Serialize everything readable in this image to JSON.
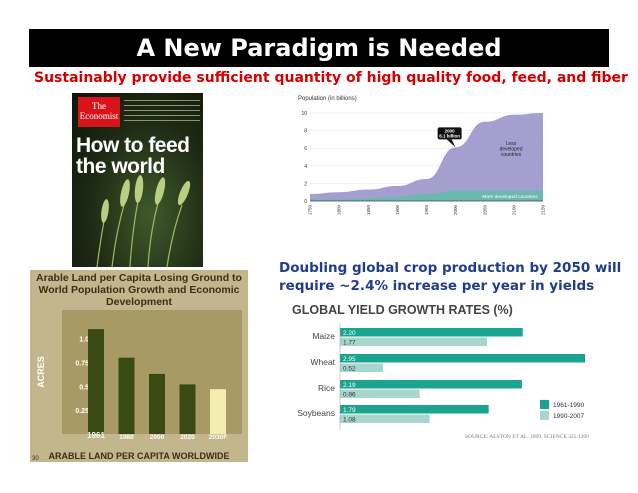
{
  "slide": {
    "title": "A New Paradigm is Needed",
    "subtitle": "Sustainably provide sufficient quantity of high quality food, feed, and fiber"
  },
  "cover": {
    "brand": "The Economist",
    "headline": "How to feed the world"
  },
  "population_chart": {
    "type": "area",
    "ylabel": "Population (in billions)",
    "y_ticks": [
      "10",
      "8",
      "6",
      "4",
      "2",
      "0"
    ],
    "x_ticks": [
      "1750",
      "1800",
      "1850",
      "1900",
      "1950",
      "2000",
      "2050",
      "2100",
      "2150"
    ],
    "annotation": "2000 6.1 billion",
    "series_less": "Less developed countries",
    "series_more": "More developed countries",
    "colors": {
      "less": "#a59fd0",
      "more": "#6bb8b0"
    }
  },
  "acres_chart": {
    "title": "Arable Land per Capita Losing Ground to World Population Growth and Economic Development",
    "ylabel": "ACRES",
    "footer": "ARABLE LAND PER CAPITA WORLDWIDE",
    "corner": "30",
    "colors": {
      "bar": "#3a4a14",
      "projected": "#f3edb0"
    }
  },
  "doubling_text": {
    "line1": "Doubling global crop production by 2050 will",
    "line2": "require ~2.4% increase per year in yields"
  },
  "yield_chart": {
    "title": "GLOBAL YIELD GROWTH RATES (%)",
    "legend": [
      "1961-1990",
      "1990-2007"
    ],
    "source": "SOURCE: ALSTON ET AL. 2009. SCIENCE 325:1209",
    "colors": {
      "early": "#1aa38e",
      "late": "#a7d6cd"
    }
  },
  "chart_data": [
    {
      "type": "area",
      "title": "",
      "ylabel": "Population (in billions)",
      "xlabel": "",
      "ylim": [
        0,
        10
      ],
      "x": [
        1750,
        1800,
        1850,
        1900,
        1950,
        2000,
        2050,
        2100,
        2150
      ],
      "series": [
        {
          "name": "More developed countries",
          "values": [
            0.2,
            0.2,
            0.3,
            0.5,
            0.8,
            1.2,
            1.2,
            1.2,
            1.2
          ]
        },
        {
          "name": "Less developed countries",
          "values": [
            0.6,
            0.8,
            1.0,
            1.2,
            1.7,
            4.9,
            7.8,
            8.6,
            8.8
          ]
        }
      ]
    },
    {
      "type": "bar",
      "title": "Arable Land per Capita Losing Ground to World Population Growth and Economic Development",
      "ylabel": "ACRES",
      "xlabel": "ARABLE LAND PER CAPITA WORLDWIDE",
      "categories": [
        "1961",
        "1980",
        "2000",
        "2020",
        "2030F"
      ],
      "values": [
        1.1,
        0.8,
        0.63,
        0.52,
        0.47
      ],
      "y_ticks": [
        "1.0",
        "0.75",
        "0.5",
        "0.25"
      ],
      "ylim": [
        0,
        1.3
      ]
    },
    {
      "type": "bar",
      "title": "GLOBAL YIELD GROWTH RATES (%)",
      "categories": [
        "Maize",
        "Wheat",
        "Rice",
        "Soybeans"
      ],
      "series": [
        {
          "name": "1961-1990",
          "values": [
            2.2,
            2.95,
            2.19,
            1.79
          ],
          "labels": [
            "2.20",
            "2.95",
            "2.19",
            "1.79"
          ]
        },
        {
          "name": "1990-2007",
          "values": [
            1.77,
            0.52,
            0.96,
            1.08
          ],
          "labels": [
            "1.77",
            "0.52",
            "0.96",
            "1.08"
          ]
        }
      ]
    }
  ]
}
